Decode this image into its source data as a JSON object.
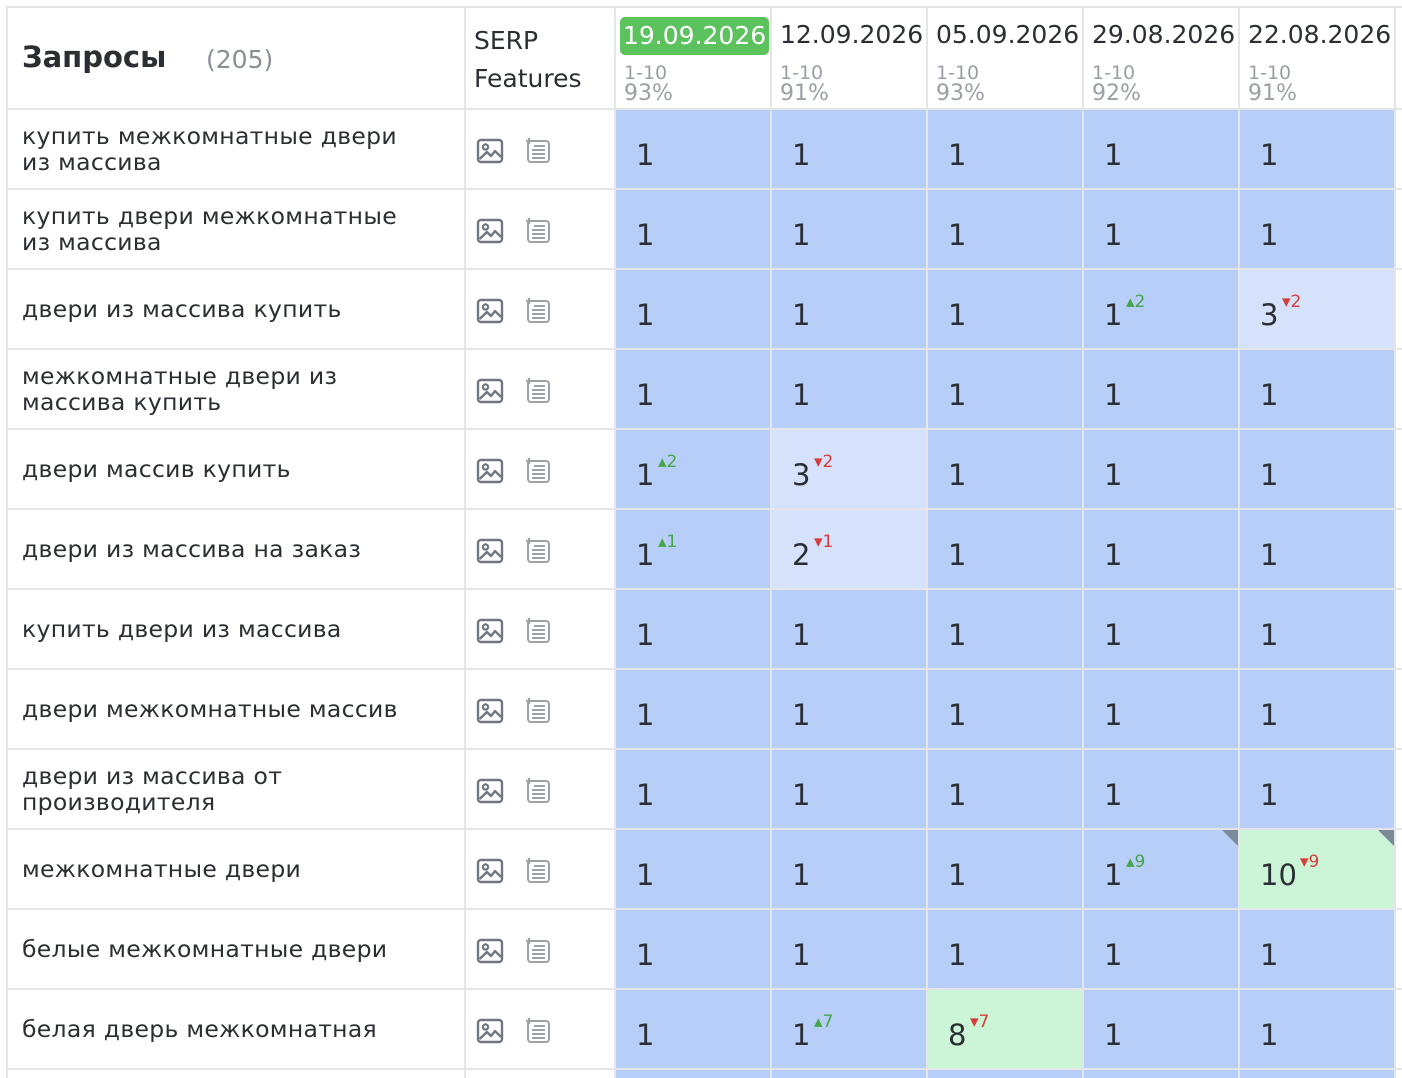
{
  "header": {
    "queries_label": "Запросы",
    "queries_count": "(205)",
    "serp_label_line1": "SERP",
    "serp_label_line2": "Features"
  },
  "dates": [
    {
      "date": "19.09.2026",
      "range": "1-10",
      "percent": "93%",
      "current": true
    },
    {
      "date": "12.09.2026",
      "range": "1-10",
      "percent": "91%",
      "current": false
    },
    {
      "date": "05.09.2026",
      "range": "1-10",
      "percent": "93%",
      "current": false
    },
    {
      "date": "29.08.2026",
      "range": "1-10",
      "percent": "92%",
      "current": false
    },
    {
      "date": "22.08.2026",
      "range": "1-10",
      "percent": "91%",
      "current": false
    }
  ],
  "serp_icons": [
    "image-icon",
    "list-plus-icon"
  ],
  "colors": {
    "top_position": "#b7cff8",
    "small_drop": "#d6e2fb",
    "big_drop": "#cbf5d6",
    "current_date_badge": "#5cc25e",
    "delta_up": "#45a548",
    "delta_down": "#d93b3b"
  },
  "rows": [
    {
      "query": "купить межкомнатные двери из массива",
      "cells": [
        {
          "pos": "1",
          "delta": "",
          "dir": "",
          "shade": 0
        },
        {
          "pos": "1",
          "delta": "",
          "dir": "",
          "shade": 0
        },
        {
          "pos": "1",
          "delta": "",
          "dir": "",
          "shade": 0
        },
        {
          "pos": "1",
          "delta": "",
          "dir": "",
          "shade": 0
        },
        {
          "pos": "1",
          "delta": "",
          "dir": "",
          "shade": 0
        }
      ]
    },
    {
      "query": "купить двери межкомнатные из массива",
      "cells": [
        {
          "pos": "1",
          "delta": "",
          "dir": "",
          "shade": 0
        },
        {
          "pos": "1",
          "delta": "",
          "dir": "",
          "shade": 0
        },
        {
          "pos": "1",
          "delta": "",
          "dir": "",
          "shade": 0
        },
        {
          "pos": "1",
          "delta": "",
          "dir": "",
          "shade": 0
        },
        {
          "pos": "1",
          "delta": "",
          "dir": "",
          "shade": 0
        }
      ]
    },
    {
      "query": "двери из массива купить",
      "cells": [
        {
          "pos": "1",
          "delta": "",
          "dir": "",
          "shade": 0
        },
        {
          "pos": "1",
          "delta": "",
          "dir": "",
          "shade": 0
        },
        {
          "pos": "1",
          "delta": "",
          "dir": "",
          "shade": 0
        },
        {
          "pos": "1",
          "delta": "2",
          "dir": "up",
          "shade": 0
        },
        {
          "pos": "3",
          "delta": "2",
          "dir": "down",
          "shade": 1
        }
      ]
    },
    {
      "query": "межкомнатные двери из массива купить",
      "cells": [
        {
          "pos": "1",
          "delta": "",
          "dir": "",
          "shade": 0
        },
        {
          "pos": "1",
          "delta": "",
          "dir": "",
          "shade": 0
        },
        {
          "pos": "1",
          "delta": "",
          "dir": "",
          "shade": 0
        },
        {
          "pos": "1",
          "delta": "",
          "dir": "",
          "shade": 0
        },
        {
          "pos": "1",
          "delta": "",
          "dir": "",
          "shade": 0
        }
      ]
    },
    {
      "query": "двери массив купить",
      "cells": [
        {
          "pos": "1",
          "delta": "2",
          "dir": "up",
          "shade": 0
        },
        {
          "pos": "3",
          "delta": "2",
          "dir": "down",
          "shade": 1
        },
        {
          "pos": "1",
          "delta": "",
          "dir": "",
          "shade": 0
        },
        {
          "pos": "1",
          "delta": "",
          "dir": "",
          "shade": 0
        },
        {
          "pos": "1",
          "delta": "",
          "dir": "",
          "shade": 0
        }
      ]
    },
    {
      "query": "двери из массива на заказ",
      "cells": [
        {
          "pos": "1",
          "delta": "1",
          "dir": "up",
          "shade": 0
        },
        {
          "pos": "2",
          "delta": "1",
          "dir": "down",
          "shade": 1
        },
        {
          "pos": "1",
          "delta": "",
          "dir": "",
          "shade": 0
        },
        {
          "pos": "1",
          "delta": "",
          "dir": "",
          "shade": 0
        },
        {
          "pos": "1",
          "delta": "",
          "dir": "",
          "shade": 0
        }
      ]
    },
    {
      "query": "купить двери из массива",
      "cells": [
        {
          "pos": "1",
          "delta": "",
          "dir": "",
          "shade": 0
        },
        {
          "pos": "1",
          "delta": "",
          "dir": "",
          "shade": 0
        },
        {
          "pos": "1",
          "delta": "",
          "dir": "",
          "shade": 0
        },
        {
          "pos": "1",
          "delta": "",
          "dir": "",
          "shade": 0
        },
        {
          "pos": "1",
          "delta": "",
          "dir": "",
          "shade": 0
        }
      ]
    },
    {
      "query": "двери межкомнатные массив",
      "cells": [
        {
          "pos": "1",
          "delta": "",
          "dir": "",
          "shade": 0
        },
        {
          "pos": "1",
          "delta": "",
          "dir": "",
          "shade": 0
        },
        {
          "pos": "1",
          "delta": "",
          "dir": "",
          "shade": 0
        },
        {
          "pos": "1",
          "delta": "",
          "dir": "",
          "shade": 0
        },
        {
          "pos": "1",
          "delta": "",
          "dir": "",
          "shade": 0
        }
      ]
    },
    {
      "query": "двери из массива от производителя",
      "cells": [
        {
          "pos": "1",
          "delta": "",
          "dir": "",
          "shade": 0
        },
        {
          "pos": "1",
          "delta": "",
          "dir": "",
          "shade": 0
        },
        {
          "pos": "1",
          "delta": "",
          "dir": "",
          "shade": 0
        },
        {
          "pos": "1",
          "delta": "",
          "dir": "",
          "shade": 0
        },
        {
          "pos": "1",
          "delta": "",
          "dir": "",
          "shade": 0
        }
      ]
    },
    {
      "query": "межкомнатные двери",
      "cells": [
        {
          "pos": "1",
          "delta": "",
          "dir": "",
          "shade": 0
        },
        {
          "pos": "1",
          "delta": "",
          "dir": "",
          "shade": 0
        },
        {
          "pos": "1",
          "delta": "",
          "dir": "",
          "shade": 0
        },
        {
          "pos": "1",
          "delta": "9",
          "dir": "up",
          "shade": 0,
          "corner": true
        },
        {
          "pos": "10",
          "delta": "9",
          "dir": "down",
          "shade": 2,
          "corner": true
        }
      ]
    },
    {
      "query": "белые межкомнатные двери",
      "cells": [
        {
          "pos": "1",
          "delta": "",
          "dir": "",
          "shade": 0
        },
        {
          "pos": "1",
          "delta": "",
          "dir": "",
          "shade": 0
        },
        {
          "pos": "1",
          "delta": "",
          "dir": "",
          "shade": 0
        },
        {
          "pos": "1",
          "delta": "",
          "dir": "",
          "shade": 0
        },
        {
          "pos": "1",
          "delta": "",
          "dir": "",
          "shade": 0
        }
      ]
    },
    {
      "query": "белая дверь межкомнатная",
      "cells": [
        {
          "pos": "1",
          "delta": "",
          "dir": "",
          "shade": 0
        },
        {
          "pos": "1",
          "delta": "7",
          "dir": "up",
          "shade": 0
        },
        {
          "pos": "8",
          "delta": "7",
          "dir": "down",
          "shade": 2
        },
        {
          "pos": "1",
          "delta": "",
          "dir": "",
          "shade": 0
        },
        {
          "pos": "1",
          "delta": "",
          "dir": "",
          "shade": 0
        }
      ]
    }
  ]
}
